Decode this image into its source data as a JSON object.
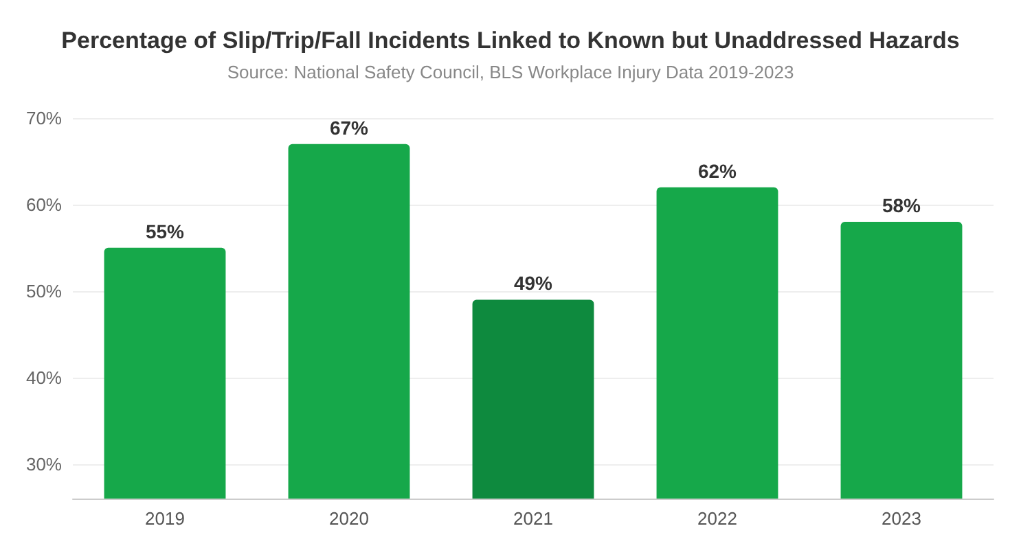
{
  "chart_data": {
    "type": "bar",
    "title": "Percentage of Slip/Trip/Fall Incidents Linked to Known but Unaddressed Hazards",
    "subtitle": "Source: National Safety Council, BLS Workplace Injury Data 2019-2023",
    "categories": [
      "2019",
      "2020",
      "2021",
      "2022",
      "2023"
    ],
    "values": [
      55,
      67,
      49,
      62,
      58
    ],
    "colors": [
      "#16a84a",
      "#16a84a",
      "#0e8a3e",
      "#16a84a",
      "#16a84a"
    ],
    "value_labels": [
      "55%",
      "67%",
      "49%",
      "62%",
      "58%"
    ],
    "ylim": [
      26,
      70
    ],
    "yticks": [
      {
        "value": 30,
        "label": "30%"
      },
      {
        "value": 40,
        "label": "40%"
      },
      {
        "value": 50,
        "label": "50%"
      },
      {
        "value": 60,
        "label": "60%"
      },
      {
        "value": 70,
        "label": "70%"
      }
    ],
    "grid": "y"
  }
}
